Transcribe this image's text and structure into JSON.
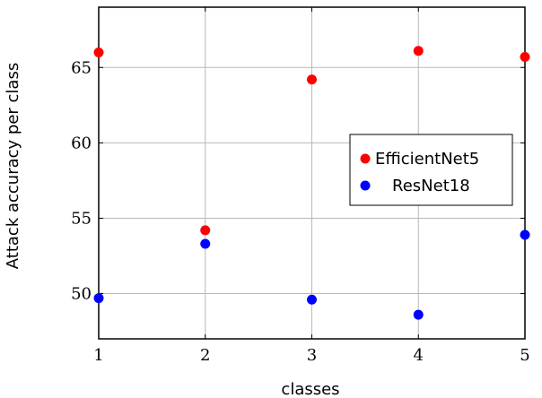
{
  "chart_data": {
    "type": "scatter",
    "xlabel": "classes",
    "ylabel": "Attack accuracy per class",
    "xlim": [
      1,
      5
    ],
    "ylim": [
      47,
      69
    ],
    "xticks": [
      1,
      2,
      3,
      4,
      5
    ],
    "yticks": [
      50,
      55,
      60,
      65
    ],
    "grid": true,
    "legend_position": "right",
    "series": [
      {
        "name": "EfficientNet5",
        "color": "#ff0000",
        "x": [
          1,
          2,
          3,
          4,
          5
        ],
        "y": [
          66.0,
          54.2,
          64.2,
          66.1,
          65.7
        ]
      },
      {
        "name": "ResNet18",
        "color": "#0000ff",
        "x": [
          1,
          2,
          3,
          4,
          5
        ],
        "y": [
          49.7,
          53.3,
          49.6,
          48.6,
          53.9
        ]
      }
    ]
  }
}
